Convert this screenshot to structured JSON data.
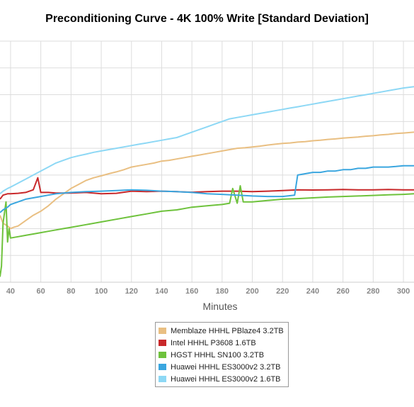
{
  "chart_data": {
    "type": "line",
    "title": "Preconditioning Curve - 4K 100% Write [Standard Deviation]",
    "xlabel": "Minutes",
    "ylabel": "",
    "xlim": [
      33,
      307
    ],
    "ylim": [
      0,
      9
    ],
    "x_ticks": [
      "40",
      "60",
      "80",
      "100",
      "120",
      "140",
      "160",
      "180",
      "200",
      "220",
      "240",
      "260",
      "280",
      "300"
    ],
    "grid": true,
    "legend": "bottom-center",
    "series": [
      {
        "name": "Memblaze HHHL PBlaze4 3.2TB",
        "color": "#e9bf82",
        "points": [
          [
            33,
            2.5
          ],
          [
            35,
            2.2
          ],
          [
            38,
            2.1
          ],
          [
            40,
            2.0
          ],
          [
            42,
            2.05
          ],
          [
            45,
            2.1
          ],
          [
            50,
            2.3
          ],
          [
            55,
            2.5
          ],
          [
            60,
            2.65
          ],
          [
            65,
            2.85
          ],
          [
            70,
            3.1
          ],
          [
            75,
            3.3
          ],
          [
            80,
            3.5
          ],
          [
            85,
            3.65
          ],
          [
            90,
            3.8
          ],
          [
            95,
            3.9
          ],
          [
            100,
            3.97
          ],
          [
            105,
            4.05
          ],
          [
            110,
            4.12
          ],
          [
            115,
            4.2
          ],
          [
            120,
            4.3
          ],
          [
            125,
            4.35
          ],
          [
            130,
            4.4
          ],
          [
            135,
            4.45
          ],
          [
            140,
            4.52
          ],
          [
            145,
            4.55
          ],
          [
            150,
            4.6
          ],
          [
            155,
            4.65
          ],
          [
            160,
            4.7
          ],
          [
            165,
            4.75
          ],
          [
            170,
            4.8
          ],
          [
            175,
            4.85
          ],
          [
            180,
            4.9
          ],
          [
            185,
            4.95
          ],
          [
            190,
            5.0
          ],
          [
            195,
            5.02
          ],
          [
            200,
            5.05
          ],
          [
            205,
            5.08
          ],
          [
            210,
            5.12
          ],
          [
            215,
            5.15
          ],
          [
            220,
            5.18
          ],
          [
            225,
            5.2
          ],
          [
            230,
            5.23
          ],
          [
            235,
            5.25
          ],
          [
            240,
            5.28
          ],
          [
            245,
            5.3
          ],
          [
            250,
            5.33
          ],
          [
            255,
            5.35
          ],
          [
            260,
            5.38
          ],
          [
            265,
            5.4
          ],
          [
            270,
            5.42
          ],
          [
            275,
            5.45
          ],
          [
            280,
            5.47
          ],
          [
            285,
            5.5
          ],
          [
            290,
            5.52
          ],
          [
            295,
            5.55
          ],
          [
            300,
            5.57
          ],
          [
            307,
            5.6
          ]
        ]
      },
      {
        "name": "Intel HHHL P3608 1.6TB",
        "color": "#c8282a",
        "points": [
          [
            33,
            3.1
          ],
          [
            35,
            3.25
          ],
          [
            38,
            3.3
          ],
          [
            40,
            3.3
          ],
          [
            45,
            3.32
          ],
          [
            50,
            3.35
          ],
          [
            55,
            3.45
          ],
          [
            58,
            3.9
          ],
          [
            60,
            3.35
          ],
          [
            65,
            3.35
          ],
          [
            70,
            3.33
          ],
          [
            80,
            3.33
          ],
          [
            90,
            3.35
          ],
          [
            100,
            3.3
          ],
          [
            110,
            3.32
          ],
          [
            120,
            3.4
          ],
          [
            130,
            3.38
          ],
          [
            140,
            3.4
          ],
          [
            150,
            3.38
          ],
          [
            160,
            3.36
          ],
          [
            170,
            3.38
          ],
          [
            180,
            3.4
          ],
          [
            190,
            3.4
          ],
          [
            200,
            3.38
          ],
          [
            210,
            3.4
          ],
          [
            220,
            3.42
          ],
          [
            230,
            3.45
          ],
          [
            240,
            3.44
          ],
          [
            250,
            3.45
          ],
          [
            260,
            3.46
          ],
          [
            270,
            3.45
          ],
          [
            280,
            3.45
          ],
          [
            290,
            3.46
          ],
          [
            300,
            3.45
          ],
          [
            307,
            3.45
          ]
        ]
      },
      {
        "name": "HGST HHHL SN100 3.2TB",
        "color": "#6ec23c",
        "points": [
          [
            33,
            0.2
          ],
          [
            34,
            0.6
          ],
          [
            35,
            2.2
          ],
          [
            36,
            2.6
          ],
          [
            37,
            3.0
          ],
          [
            38,
            1.5
          ],
          [
            39,
            2.0
          ],
          [
            40,
            1.65
          ],
          [
            45,
            1.7
          ],
          [
            50,
            1.75
          ],
          [
            55,
            1.8
          ],
          [
            60,
            1.85
          ],
          [
            65,
            1.9
          ],
          [
            70,
            1.95
          ],
          [
            75,
            2.0
          ],
          [
            80,
            2.05
          ],
          [
            90,
            2.15
          ],
          [
            100,
            2.25
          ],
          [
            110,
            2.35
          ],
          [
            120,
            2.45
          ],
          [
            130,
            2.55
          ],
          [
            140,
            2.65
          ],
          [
            150,
            2.7
          ],
          [
            160,
            2.8
          ],
          [
            170,
            2.85
          ],
          [
            180,
            2.9
          ],
          [
            185,
            2.95
          ],
          [
            187,
            3.5
          ],
          [
            190,
            2.95
          ],
          [
            192,
            3.6
          ],
          [
            194,
            3.0
          ],
          [
            200,
            3.0
          ],
          [
            210,
            3.05
          ],
          [
            220,
            3.1
          ],
          [
            230,
            3.12
          ],
          [
            240,
            3.15
          ],
          [
            250,
            3.18
          ],
          [
            260,
            3.2
          ],
          [
            270,
            3.22
          ],
          [
            280,
            3.24
          ],
          [
            290,
            3.26
          ],
          [
            300,
            3.28
          ],
          [
            307,
            3.3
          ]
        ]
      },
      {
        "name": "Huawei HHHL ES3000v2 3.2TB",
        "color": "#3aa6df",
        "points": [
          [
            33,
            2.6
          ],
          [
            35,
            2.7
          ],
          [
            38,
            2.8
          ],
          [
            40,
            2.9
          ],
          [
            45,
            3.0
          ],
          [
            50,
            3.1
          ],
          [
            55,
            3.15
          ],
          [
            60,
            3.2
          ],
          [
            65,
            3.25
          ],
          [
            70,
            3.3
          ],
          [
            80,
            3.35
          ],
          [
            90,
            3.38
          ],
          [
            100,
            3.4
          ],
          [
            110,
            3.42
          ],
          [
            120,
            3.45
          ],
          [
            130,
            3.43
          ],
          [
            140,
            3.4
          ],
          [
            150,
            3.38
          ],
          [
            160,
            3.35
          ],
          [
            170,
            3.3
          ],
          [
            180,
            3.28
          ],
          [
            190,
            3.25
          ],
          [
            200,
            3.22
          ],
          [
            210,
            3.2
          ],
          [
            220,
            3.2
          ],
          [
            228,
            3.25
          ],
          [
            230,
            4.0
          ],
          [
            235,
            4.05
          ],
          [
            240,
            4.1
          ],
          [
            245,
            4.1
          ],
          [
            250,
            4.15
          ],
          [
            255,
            4.15
          ],
          [
            260,
            4.2
          ],
          [
            265,
            4.2
          ],
          [
            270,
            4.25
          ],
          [
            275,
            4.25
          ],
          [
            280,
            4.3
          ],
          [
            285,
            4.3
          ],
          [
            290,
            4.3
          ],
          [
            295,
            4.32
          ],
          [
            300,
            4.35
          ],
          [
            307,
            4.35
          ]
        ]
      },
      {
        "name": "Huawei HHHL ES3000v2 1.6TB",
        "color": "#8dd8f5",
        "points": [
          [
            33,
            3.3
          ],
          [
            35,
            3.4
          ],
          [
            38,
            3.5
          ],
          [
            40,
            3.55
          ],
          [
            45,
            3.7
          ],
          [
            50,
            3.85
          ],
          [
            55,
            4.0
          ],
          [
            60,
            4.15
          ],
          [
            65,
            4.3
          ],
          [
            70,
            4.45
          ],
          [
            75,
            4.55
          ],
          [
            80,
            4.65
          ],
          [
            85,
            4.72
          ],
          [
            90,
            4.78
          ],
          [
            95,
            4.85
          ],
          [
            100,
            4.9
          ],
          [
            105,
            4.95
          ],
          [
            110,
            5.0
          ],
          [
            115,
            5.05
          ],
          [
            120,
            5.1
          ],
          [
            125,
            5.15
          ],
          [
            130,
            5.2
          ],
          [
            135,
            5.25
          ],
          [
            140,
            5.3
          ],
          [
            145,
            5.35
          ],
          [
            150,
            5.4
          ],
          [
            155,
            5.5
          ],
          [
            160,
            5.6
          ],
          [
            165,
            5.7
          ],
          [
            170,
            5.8
          ],
          [
            175,
            5.9
          ],
          [
            180,
            6.0
          ],
          [
            185,
            6.1
          ],
          [
            190,
            6.15
          ],
          [
            195,
            6.2
          ],
          [
            200,
            6.25
          ],
          [
            205,
            6.3
          ],
          [
            210,
            6.35
          ],
          [
            215,
            6.4
          ],
          [
            220,
            6.45
          ],
          [
            225,
            6.5
          ],
          [
            230,
            6.55
          ],
          [
            235,
            6.6
          ],
          [
            240,
            6.65
          ],
          [
            245,
            6.7
          ],
          [
            250,
            6.75
          ],
          [
            255,
            6.8
          ],
          [
            260,
            6.85
          ],
          [
            265,
            6.9
          ],
          [
            270,
            6.95
          ],
          [
            275,
            7.0
          ],
          [
            280,
            7.05
          ],
          [
            285,
            7.1
          ],
          [
            290,
            7.15
          ],
          [
            295,
            7.2
          ],
          [
            300,
            7.25
          ],
          [
            307,
            7.3
          ]
        ]
      }
    ]
  }
}
